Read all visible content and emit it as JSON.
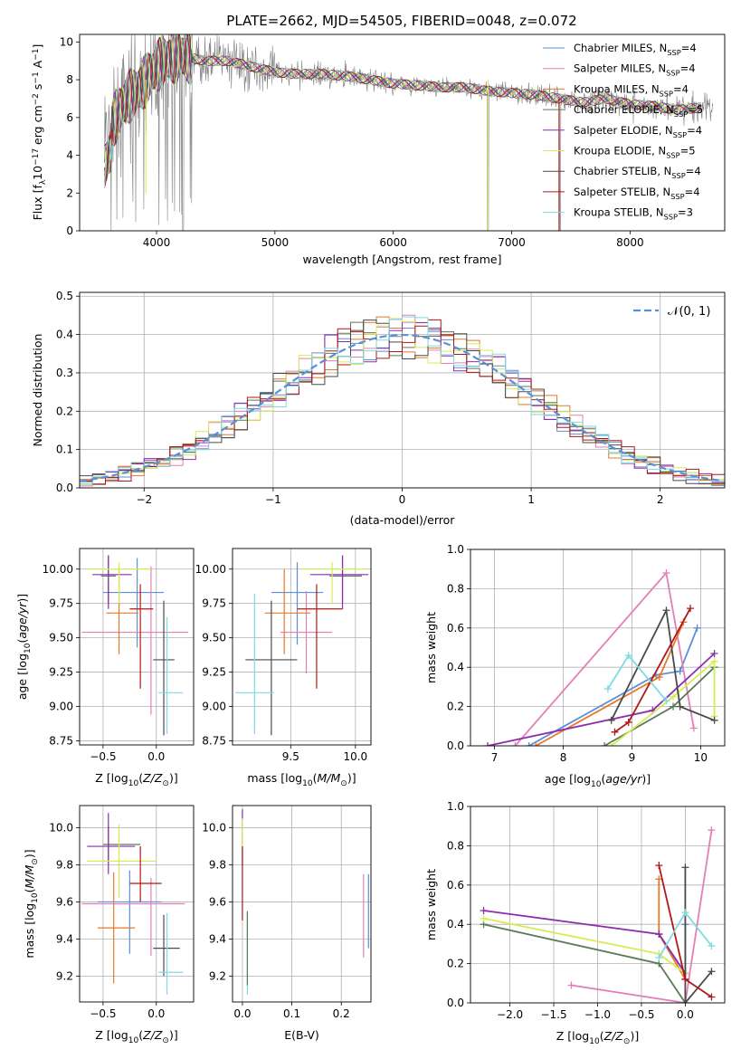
{
  "title": "PLATE=2662, MJD=54505, FIBERID=0048, z=0.072",
  "colors": {
    "chabrier_miles": "#5b8fd6",
    "salpeter_miles": "#e37fb8",
    "kroupa_miles": "#e8782a",
    "chabrier_elodie": "#5a7a5a",
    "salpeter_elodie": "#8e2cae",
    "kroupa_elodie": "#d6ec55",
    "chabrier_stelib": "#4a4a4a",
    "salpeter_stelib": "#b01818",
    "kroupa_stelib": "#7edbe0",
    "data": "#808080",
    "normal": "#5b8fd6"
  },
  "models": [
    {
      "key": "chabrier_miles",
      "label": "Chabrier MILES, N",
      "n": "4"
    },
    {
      "key": "salpeter_miles",
      "label": "Salpeter MILES, N",
      "n": "4"
    },
    {
      "key": "kroupa_miles",
      "label": "Kroupa MILES, N",
      "n": "4"
    },
    {
      "key": "chabrier_elodie",
      "label": "Chabrier ELODIE, N",
      "n": "5"
    },
    {
      "key": "salpeter_elodie",
      "label": "Salpeter ELODIE, N",
      "n": "4"
    },
    {
      "key": "kroupa_elodie",
      "label": "Kroupa ELODIE, N",
      "n": "5"
    },
    {
      "key": "chabrier_stelib",
      "label": "Chabrier STELIB, N",
      "n": "4"
    },
    {
      "key": "salpeter_stelib",
      "label": "Salpeter STELIB, N",
      "n": "4"
    },
    {
      "key": "kroupa_stelib",
      "label": "Kroupa STELIB, N",
      "n": "3"
    }
  ],
  "chart_data": [
    {
      "id": "spectrum",
      "type": "line",
      "xlabel": "wavelength [Angstrom, rest frame]",
      "ylabel": "Flux [f_λ 10^-17 erg cm^-2 s^-1 A^-1]",
      "xlim": [
        3350,
        8800
      ],
      "ylim": [
        0,
        10.4
      ],
      "xticks": [
        4000,
        5000,
        6000,
        7000,
        8000
      ],
      "yticks": [
        0,
        2,
        4,
        6,
        8,
        10
      ],
      "grid": false,
      "legend": "right",
      "continuum": [
        [
          3560,
          4.6
        ],
        [
          3650,
          6.0
        ],
        [
          3750,
          7.0
        ],
        [
          3850,
          7.5
        ],
        [
          3950,
          8.3
        ],
        [
          4050,
          9.0
        ],
        [
          4200,
          9.3
        ],
        [
          4400,
          9.0
        ],
        [
          4600,
          9.0
        ],
        [
          4800,
          8.7
        ],
        [
          5000,
          8.4
        ],
        [
          5200,
          8.3
        ],
        [
          5400,
          8.3
        ],
        [
          5600,
          8.2
        ],
        [
          5800,
          8.0
        ],
        [
          6000,
          7.8
        ],
        [
          6200,
          7.7
        ],
        [
          6400,
          7.6
        ],
        [
          6600,
          7.6
        ],
        [
          6800,
          7.4
        ],
        [
          7000,
          7.3
        ],
        [
          7200,
          7.2
        ],
        [
          7400,
          7.0
        ],
        [
          7600,
          6.8
        ],
        [
          7800,
          7.0
        ],
        [
          8000,
          6.7
        ],
        [
          8200,
          6.6
        ],
        [
          8400,
          6.4
        ],
        [
          8700,
          6.6
        ]
      ]
    },
    {
      "id": "residuals",
      "type": "line",
      "xlabel": "(data-model)/error",
      "ylabel": "Normed distribution",
      "xlim": [
        -2.5,
        2.5
      ],
      "ylim": [
        0,
        0.51
      ],
      "xticks": [
        -2,
        -1,
        0,
        1,
        2
      ],
      "yticks": [
        0,
        0.1,
        0.2,
        0.3,
        0.4,
        0.5
      ],
      "grid": true,
      "legend": "top-right",
      "legend_label": "N(0,1)"
    },
    {
      "id": "age_vs_z",
      "type": "scatter",
      "xlabel": "Z [log10(Z/Z⊙)]",
      "ylabel": "age [log10(age/yr)]",
      "xlim": [
        -0.72,
        0.35
      ],
      "ylim": [
        8.72,
        10.15
      ],
      "xticks": [
        -0.5,
        0.0
      ],
      "yticks": [
        8.75,
        9.0,
        9.25,
        9.5,
        9.75,
        10.0
      ],
      "grid": true,
      "points": [
        {
          "key": "chabrier_miles",
          "x": -0.18,
          "y": 9.83,
          "xerr": [
            0.32,
            0.25
          ],
          "yerr": [
            0.4,
            0.25
          ]
        },
        {
          "key": "salpeter_miles",
          "x": -0.05,
          "y": 9.54,
          "xerr": [
            0.65,
            0.35
          ],
          "yerr": [
            0.6,
            0.48
          ]
        },
        {
          "key": "kroupa_miles",
          "x": -0.35,
          "y": 9.68,
          "xerr": [
            0.12,
            0.18
          ],
          "yerr": [
            0.3,
            0.32
          ]
        },
        {
          "key": "chabrier_elodie",
          "x": -0.45,
          "y": 9.95,
          "xerr": [
            0.07,
            0.07
          ],
          "yerr": [
            0.2,
            0.15
          ]
        },
        {
          "key": "salpeter_elodie",
          "x": -0.45,
          "y": 9.96,
          "xerr": [
            0.15,
            0.22
          ],
          "yerr": [
            0.25,
            0.14
          ]
        },
        {
          "key": "kroupa_elodie",
          "x": -0.35,
          "y": 10.0,
          "xerr": [
            0.3,
            0.3
          ],
          "yerr": [
            0.25,
            0.05
          ]
        },
        {
          "key": "chabrier_stelib",
          "x": 0.07,
          "y": 9.34,
          "xerr": [
            0.1,
            0.1
          ],
          "yerr": [
            0.55,
            0.43
          ]
        },
        {
          "key": "salpeter_stelib",
          "x": -0.15,
          "y": 9.71,
          "xerr": [
            0.1,
            0.12
          ],
          "yerr": [
            0.58,
            0.18
          ]
        },
        {
          "key": "kroupa_stelib",
          "x": 0.1,
          "y": 9.1,
          "xerr": [
            0.08,
            0.15
          ],
          "yerr": [
            0.3,
            0.55
          ]
        }
      ]
    },
    {
      "id": "age_vs_mass",
      "type": "scatter",
      "xlabel": "mass [log10(M/M⊙)]",
      "ylabel": "",
      "xlim": [
        9.05,
        10.12
      ],
      "ylim": [
        8.72,
        10.15
      ],
      "xticks": [
        9.5,
        10.0
      ],
      "yticks": [
        8.75,
        9.0,
        9.25,
        9.5,
        9.75,
        10.0
      ],
      "grid": true,
      "points": [
        {
          "key": "chabrier_miles",
          "x": 9.55,
          "y": 9.83,
          "xerr": [
            0.2,
            0.2
          ],
          "yerr": [
            0.38,
            0.22
          ]
        },
        {
          "key": "salpeter_miles",
          "x": 9.62,
          "y": 9.54,
          "xerr": [
            0.2,
            0.2
          ],
          "yerr": [
            0.3,
            0.3
          ]
        },
        {
          "key": "kroupa_miles",
          "x": 9.45,
          "y": 9.68,
          "xerr": [
            0.15,
            0.2
          ],
          "yerr": [
            0.3,
            0.32
          ]
        },
        {
          "key": "chabrier_elodie",
          "x": 9.9,
          "y": 9.95,
          "xerr": [
            0.1,
            0.15
          ],
          "yerr": [
            0.2,
            0.15
          ]
        },
        {
          "key": "salpeter_elodie",
          "x": 9.9,
          "y": 9.96,
          "xerr": [
            0.25,
            0.2
          ],
          "yerr": [
            0.25,
            0.14
          ]
        },
        {
          "key": "kroupa_elodie",
          "x": 9.82,
          "y": 10.0,
          "xerr": [
            0.25,
            0.25
          ],
          "yerr": [
            0.25,
            0.05
          ]
        },
        {
          "key": "chabrier_stelib",
          "x": 9.35,
          "y": 9.34,
          "xerr": [
            0.2,
            0.2
          ],
          "yerr": [
            0.55,
            0.43
          ]
        },
        {
          "key": "salpeter_stelib",
          "x": 9.7,
          "y": 9.71,
          "xerr": [
            0.15,
            0.2
          ],
          "yerr": [
            0.58,
            0.18
          ]
        },
        {
          "key": "kroupa_stelib",
          "x": 9.22,
          "y": 9.1,
          "xerr": [
            0.15,
            0.15
          ],
          "yerr": [
            0.3,
            0.72
          ]
        }
      ]
    },
    {
      "id": "mass_weight_vs_age",
      "type": "line",
      "xlabel": "age [log10(age/yr)]",
      "ylabel": "mass weight",
      "xlim": [
        6.65,
        10.35
      ],
      "ylim": [
        0,
        1.0
      ],
      "xticks": [
        7,
        8,
        9,
        10
      ],
      "yticks": [
        0,
        0.2,
        0.4,
        0.6,
        0.8,
        1.0
      ],
      "grid": true,
      "series": [
        {
          "key": "chabrier_miles",
          "pts": [
            [
              7.5,
              0.0
            ],
            [
              9.35,
              0.36
            ],
            [
              9.7,
              0.38
            ],
            [
              9.95,
              0.6
            ]
          ]
        },
        {
          "key": "salpeter_miles",
          "pts": [
            [
              7.3,
              0.0
            ],
            [
              9.5,
              0.88
            ],
            [
              9.9,
              0.09
            ]
          ]
        },
        {
          "key": "kroupa_miles",
          "pts": [
            [
              7.6,
              0.0
            ],
            [
              9.4,
              0.35
            ],
            [
              9.75,
              0.63
            ]
          ]
        },
        {
          "key": "chabrier_elodie",
          "pts": [
            [
              8.6,
              0.0
            ],
            [
              9.6,
              0.2
            ],
            [
              10.2,
              0.4
            ]
          ]
        },
        {
          "key": "salpeter_elodie",
          "pts": [
            [
              6.9,
              0.0
            ],
            [
              9.3,
              0.18
            ],
            [
              10.2,
              0.47
            ]
          ]
        },
        {
          "key": "kroupa_elodie",
          "pts": [
            [
              8.7,
              0.0
            ],
            [
              9.6,
              0.25
            ],
            [
              10.2,
              0.43
            ],
            [
              10.2,
              0.15
            ]
          ]
        },
        {
          "key": "chabrier_stelib",
          "pts": [
            [
              8.7,
              0.13
            ],
            [
              9.5,
              0.69
            ],
            [
              9.7,
              0.2
            ],
            [
              10.2,
              0.13
            ]
          ]
        },
        {
          "key": "salpeter_stelib",
          "pts": [
            [
              8.75,
              0.07
            ],
            [
              8.95,
              0.12
            ],
            [
              9.85,
              0.7
            ]
          ]
        },
        {
          "key": "kroupa_stelib",
          "pts": [
            [
              8.65,
              0.29
            ],
            [
              8.95,
              0.46
            ],
            [
              9.5,
              0.23
            ]
          ]
        }
      ]
    },
    {
      "id": "mass_vs_z",
      "type": "scatter",
      "xlabel": "Z [log10(Z/Z⊙)]",
      "ylabel": "mass [log10(M/M⊙)]",
      "xlim": [
        -0.72,
        0.35
      ],
      "ylim": [
        9.06,
        10.12
      ],
      "xticks": [
        -0.5,
        0.0
      ],
      "yticks": [
        9.2,
        9.4,
        9.6,
        9.8,
        10.0
      ],
      "grid": true,
      "points": [
        {
          "key": "chabrier_miles",
          "x": -0.25,
          "y": 9.6,
          "xerr": [
            0.3,
            0.3
          ],
          "yerr": [
            0.28,
            0.17
          ]
        },
        {
          "key": "salpeter_miles",
          "x": -0.05,
          "y": 9.59,
          "xerr": [
            0.65,
            0.32
          ],
          "yerr": [
            0.28,
            0.14
          ]
        },
        {
          "key": "kroupa_miles",
          "x": -0.4,
          "y": 9.46,
          "xerr": [
            0.15,
            0.2
          ],
          "yerr": [
            0.3,
            0.3
          ]
        },
        {
          "key": "chabrier_elodie",
          "x": -0.45,
          "y": 9.91,
          "xerr": [
            0.05,
            0.3
          ],
          "yerr": [
            0.1,
            0.1
          ]
        },
        {
          "key": "salpeter_elodie",
          "x": -0.45,
          "y": 9.9,
          "xerr": [
            0.2,
            0.25
          ],
          "yerr": [
            0.15,
            0.18
          ]
        },
        {
          "key": "kroupa_elodie",
          "x": -0.35,
          "y": 9.82,
          "xerr": [
            0.3,
            0.35
          ],
          "yerr": [
            0.2,
            0.2
          ]
        },
        {
          "key": "chabrier_stelib",
          "x": 0.07,
          "y": 9.35,
          "xerr": [
            0.1,
            0.15
          ],
          "yerr": [
            0.15,
            0.18
          ]
        },
        {
          "key": "salpeter_stelib",
          "x": -0.15,
          "y": 9.7,
          "xerr": [
            0.1,
            0.2
          ],
          "yerr": [
            0.1,
            0.2
          ]
        },
        {
          "key": "kroupa_stelib",
          "x": 0.1,
          "y": 9.22,
          "xerr": [
            0.08,
            0.15
          ],
          "yerr": [
            0.12,
            0.32
          ]
        }
      ]
    },
    {
      "id": "mass_vs_ebv",
      "type": "scatter",
      "xlabel": "E(B-V)",
      "ylabel": "",
      "xlim": [
        -0.02,
        0.26
      ],
      "ylim": [
        9.06,
        10.12
      ],
      "xticks": [
        0.0,
        0.1,
        0.2
      ],
      "yticks": [
        9.2,
        9.4,
        9.6,
        9.8,
        10.0
      ],
      "grid": true,
      "points": [
        {
          "key": "salpeter_miles",
          "x": 0.245,
          "y": 9.55,
          "xerr": [
            0,
            0
          ],
          "yerr": [
            0.25,
            0.2
          ]
        },
        {
          "key": "chabrier_miles",
          "x": 0.255,
          "y": 9.55,
          "xerr": [
            0,
            0
          ],
          "yerr": [
            0.2,
            0.2
          ]
        },
        {
          "key": "salpeter_elodie",
          "x": 0.0,
          "y": 9.95,
          "xerr": [
            0,
            0
          ],
          "yerr": [
            0.15,
            0.15
          ]
        },
        {
          "key": "kroupa_elodie",
          "x": 0.0,
          "y": 9.85,
          "xerr": [
            0,
            0
          ],
          "yerr": [
            0.2,
            0.2
          ]
        },
        {
          "key": "salpeter_stelib",
          "x": 0.0,
          "y": 9.7,
          "xerr": [
            0,
            0
          ],
          "yerr": [
            0.2,
            0.2
          ]
        },
        {
          "key": "kroupa_stelib",
          "x": 0.01,
          "y": 9.32,
          "xerr": [
            0,
            0
          ],
          "yerr": [
            0.22,
            0.22
          ]
        },
        {
          "key": "chabrier_elodie",
          "x": 0.01,
          "y": 9.35,
          "xerr": [
            0,
            0
          ],
          "yerr": [
            0.2,
            0.2
          ]
        }
      ]
    },
    {
      "id": "mass_weight_vs_z",
      "type": "line",
      "xlabel": "Z [log10(Z/Z⊙)]",
      "ylabel": "mass weight",
      "xlim": [
        -2.45,
        0.45
      ],
      "ylim": [
        0,
        1.0
      ],
      "xticks": [
        -2.0,
        -1.5,
        -1.0,
        -0.5,
        0.0
      ],
      "yticks": [
        0,
        0.2,
        0.4,
        0.6,
        0.8,
        1.0
      ],
      "grid": true,
      "series": [
        {
          "key": "chabrier_miles",
          "pts": [
            [
              -0.3,
              0.35
            ],
            [
              0.0,
              0.15
            ],
            [
              0.0,
              0.4
            ]
          ]
        },
        {
          "key": "salpeter_miles",
          "pts": [
            [
              -1.3,
              0.09
            ],
            [
              0.0,
              0.0
            ],
            [
              0.3,
              0.88
            ]
          ]
        },
        {
          "key": "kroupa_miles",
          "pts": [
            [
              -0.3,
              0.63
            ],
            [
              -0.3,
              0.35
            ],
            [
              0.0,
              0.12
            ]
          ]
        },
        {
          "key": "chabrier_elodie",
          "pts": [
            [
              -2.3,
              0.4
            ],
            [
              -0.3,
              0.2
            ],
            [
              0.0,
              0.0
            ]
          ]
        },
        {
          "key": "salpeter_elodie",
          "pts": [
            [
              -2.3,
              0.47
            ],
            [
              -0.3,
              0.35
            ],
            [
              0.0,
              0.15
            ]
          ]
        },
        {
          "key": "kroupa_elodie",
          "pts": [
            [
              -2.3,
              0.43
            ],
            [
              -0.3,
              0.25
            ],
            [
              0.0,
              0.15
            ]
          ]
        },
        {
          "key": "chabrier_stelib",
          "pts": [
            [
              0.0,
              0.69
            ],
            [
              0.0,
              0.0
            ],
            [
              0.3,
              0.16
            ]
          ]
        },
        {
          "key": "salpeter_stelib",
          "pts": [
            [
              -0.3,
              0.7
            ],
            [
              0.0,
              0.12
            ],
            [
              0.3,
              0.03
            ]
          ]
        },
        {
          "key": "kroupa_stelib",
          "pts": [
            [
              -0.3,
              0.23
            ],
            [
              0.0,
              0.46
            ],
            [
              0.3,
              0.29
            ]
          ]
        }
      ]
    }
  ]
}
